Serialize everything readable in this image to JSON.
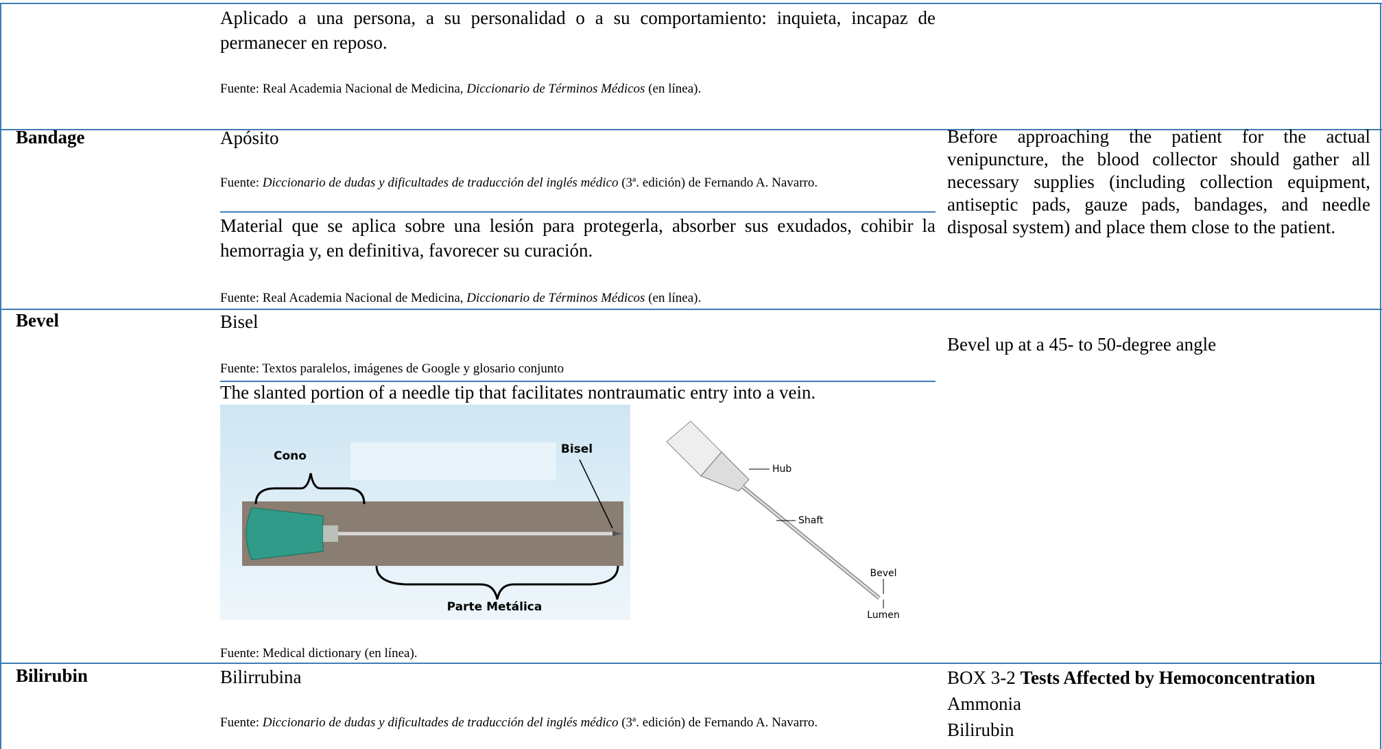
{
  "rows": [
    {
      "definitions": [
        {
          "text": "Aplicado a una persona, a su personalidad o a su comportamiento: inquieta, incapaz de permanecer en reposo.",
          "source": {
            "prefix": "Fuente: Real Academia Nacional de Medicina, ",
            "italic": "Diccionario de Términos Médicos",
            "suffix": " (en línea)."
          }
        }
      ]
    },
    {
      "term": "Bandage",
      "definitions": [
        {
          "text": "Apósito",
          "source": {
            "prefix": "Fuente: ",
            "italic": "Diccionario de dudas y dificultades de traducción del inglés médico",
            "suffix": " (3ª. edición) de Fernando A. Navarro."
          }
        },
        {
          "text": "Material que se aplica sobre una lesión para protegerla, absorber sus exudados, cohibir la hemorragia y, en definitiva, favorecer su curación.",
          "source": {
            "prefix": "Fuente: Real Academia Nacional de Medicina, ",
            "italic": "Diccionario de Términos Médicos",
            "suffix": " (en línea)."
          }
        }
      ],
      "context": "Before approaching the patient for the actual venipuncture, the blood collector should gather all necessary supplies (including collection equipment, antiseptic pads, gauze pads, bandages, and needle disposal system) and place them close to the patient."
    },
    {
      "term": "Bevel",
      "definitions": [
        {
          "text": "Bisel",
          "source": {
            "prefix": "Fuente: Textos paralelos, imágenes de Google y glosario conjunto"
          }
        },
        {
          "text": "The slanted portion of a needle tip that facilitates nontraumatic entry into a vein.",
          "figure": {
            "left_labels": [
              "Cono",
              "Bisel",
              "Parte Metálica"
            ],
            "right_labels": [
              "Hub",
              "Shaft",
              "Bevel",
              "Lumen"
            ]
          },
          "source": {
            "prefix": "Fuente: Medical dictionary (en línea)."
          }
        }
      ],
      "context": "Bevel up at a 45- to 50-degree angle"
    },
    {
      "term": "Bilirubin",
      "definitions": [
        {
          "text": "Bilirrubina",
          "source": {
            "prefix": "Fuente: ",
            "italic": "Diccionario de dudas y dificultades de traducción del inglés médico",
            "suffix": " (3ª. edición) de Fernando A. Navarro."
          }
        }
      ],
      "context_box": {
        "label": "BOX 3-2",
        "title": "Tests Affected by Hemoconcentration",
        "items": [
          "Ammonia",
          "Bilirubin"
        ]
      }
    }
  ]
}
